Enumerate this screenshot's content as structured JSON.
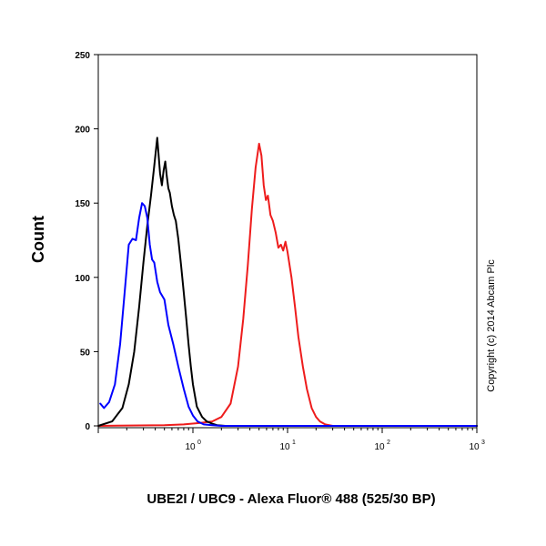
{
  "chart_data": {
    "type": "line",
    "xlabel": "UBE2I / UBC9 - Alexa Fluor® 488 (525/30 BP)",
    "ylabel": "Count",
    "copyright": "Copyright (c) 2014 Abcam Plc",
    "x_scale": "log",
    "xlim": [
      0.1,
      1000
    ],
    "ylim": [
      0,
      250
    ],
    "yticks": [
      0,
      50,
      100,
      150,
      200,
      250
    ],
    "ytick_labels": [
      "0",
      "50",
      "100",
      "150",
      "200",
      "250"
    ],
    "xticks": [
      {
        "value": 1,
        "base": "10",
        "exp": "0"
      },
      {
        "value": 10,
        "base": "10",
        "exp": "1"
      },
      {
        "value": 100,
        "base": "10",
        "exp": "2"
      },
      {
        "value": 1000,
        "base": "10",
        "exp": "3"
      }
    ],
    "grid": false,
    "series": [
      {
        "color": "#0000ff",
        "x": [
          0.105,
          0.115,
          0.13,
          0.15,
          0.17,
          0.19,
          0.21,
          0.23,
          0.25,
          0.27,
          0.29,
          0.31,
          0.33,
          0.35,
          0.37,
          0.39,
          0.42,
          0.45,
          0.5,
          0.55,
          0.62,
          0.7,
          0.8,
          0.9,
          1.0,
          1.12,
          1.3,
          1.6,
          2.0,
          3.0,
          10,
          100,
          1000
        ],
        "y": [
          15,
          12,
          16,
          28,
          55,
          90,
          122,
          126,
          125,
          140,
          150,
          148,
          140,
          122,
          112,
          110,
          97,
          90,
          85,
          68,
          55,
          40,
          25,
          13,
          7,
          3,
          1,
          0.5,
          0,
          0,
          0,
          0,
          0
        ]
      },
      {
        "color": "#000000",
        "x": [
          0.1,
          0.14,
          0.18,
          0.21,
          0.24,
          0.27,
          0.3,
          0.33,
          0.36,
          0.39,
          0.42,
          0.45,
          0.47,
          0.49,
          0.51,
          0.53,
          0.55,
          0.57,
          0.6,
          0.63,
          0.66,
          0.7,
          0.75,
          0.8,
          0.85,
          0.9,
          0.95,
          1.0,
          1.1,
          1.25,
          1.4,
          1.6,
          1.8,
          2.2,
          3.0,
          10,
          100,
          1000
        ],
        "y": [
          0,
          3,
          12,
          28,
          50,
          80,
          110,
          135,
          155,
          175,
          194,
          170,
          162,
          172,
          178,
          168,
          160,
          157,
          148,
          142,
          138,
          126,
          108,
          90,
          72,
          55,
          40,
          28,
          13,
          6,
          3,
          1.5,
          0.5,
          0,
          0,
          0,
          0,
          0
        ]
      },
      {
        "color": "#ee1c1c",
        "x": [
          0.1,
          0.5,
          0.8,
          1.2,
          1.6,
          2.0,
          2.5,
          3.0,
          3.4,
          3.8,
          4.2,
          4.6,
          5.0,
          5.3,
          5.6,
          5.9,
          6.2,
          6.6,
          7.0,
          7.5,
          8.0,
          8.5,
          9.0,
          9.5,
          10,
          11,
          12,
          13,
          14.5,
          16,
          18,
          20,
          22,
          25,
          30,
          100,
          1000
        ],
        "y": [
          0,
          0.5,
          1,
          2,
          3,
          6,
          15,
          40,
          72,
          108,
          146,
          174,
          190,
          182,
          162,
          152,
          155,
          142,
          138,
          130,
          120,
          122,
          118,
          124,
          117,
          100,
          80,
          60,
          40,
          25,
          12,
          6,
          3,
          1,
          0,
          0,
          0
        ]
      }
    ]
  }
}
